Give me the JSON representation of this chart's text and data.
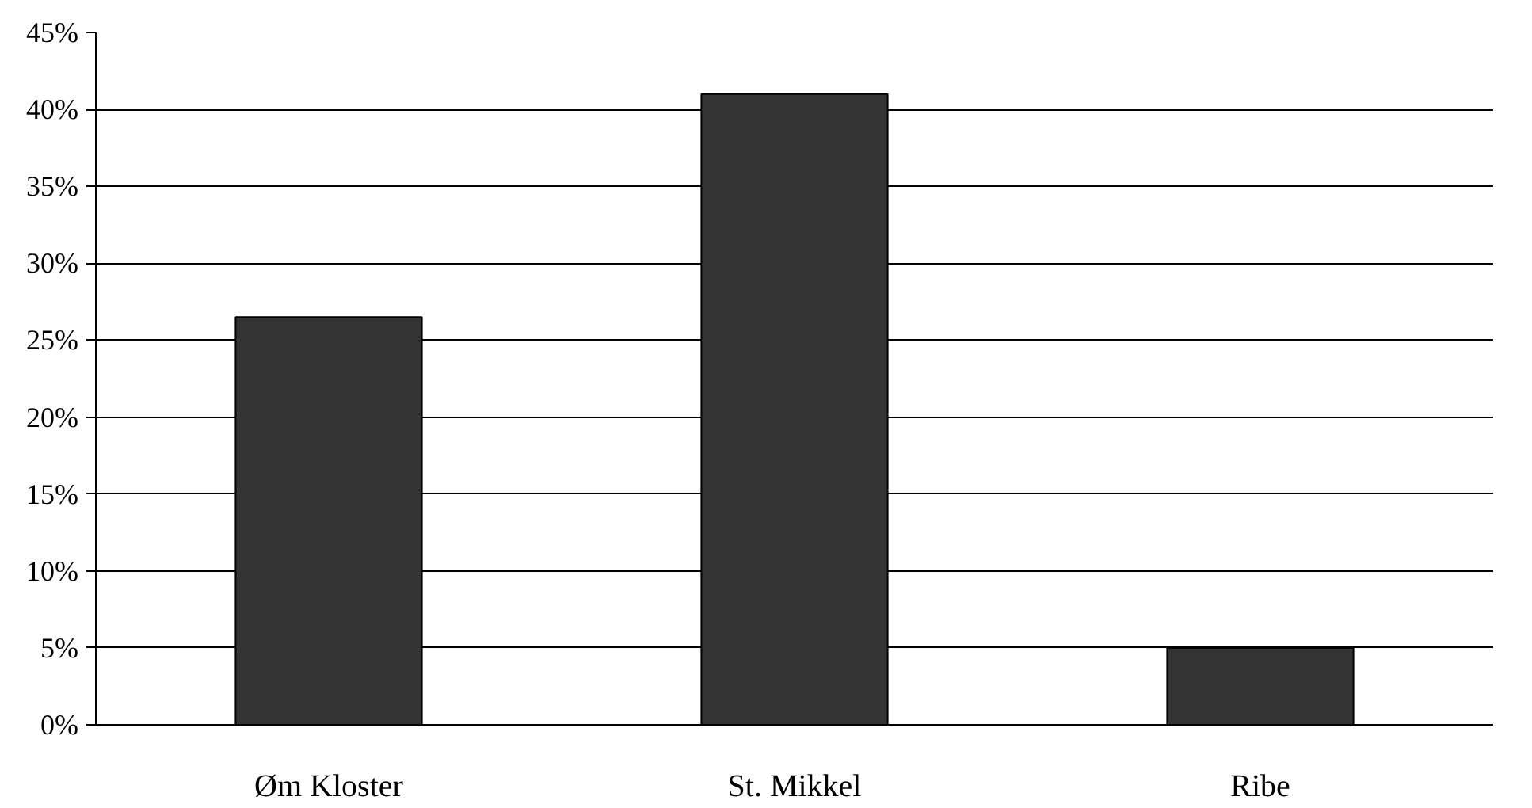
{
  "chart_data": {
    "type": "bar",
    "categories": [
      "Øm Kloster",
      "St. Mikkel",
      "Ribe"
    ],
    "values": [
      26.5,
      41,
      5
    ],
    "color": "#333333",
    "ylim": [
      0,
      45
    ],
    "yticks": [
      {
        "value": 0,
        "label": "0%"
      },
      {
        "value": 5,
        "label": "5%"
      },
      {
        "value": 10,
        "label": "10%"
      },
      {
        "value": 15,
        "label": "15%"
      },
      {
        "value": 20,
        "label": "20%"
      },
      {
        "value": 25,
        "label": "25%"
      },
      {
        "value": 30,
        "label": "30%"
      },
      {
        "value": 35,
        "label": "35%"
      },
      {
        "value": 40,
        "label": "40%"
      },
      {
        "value": 45,
        "label": "45%"
      }
    ],
    "grid": "y"
  }
}
